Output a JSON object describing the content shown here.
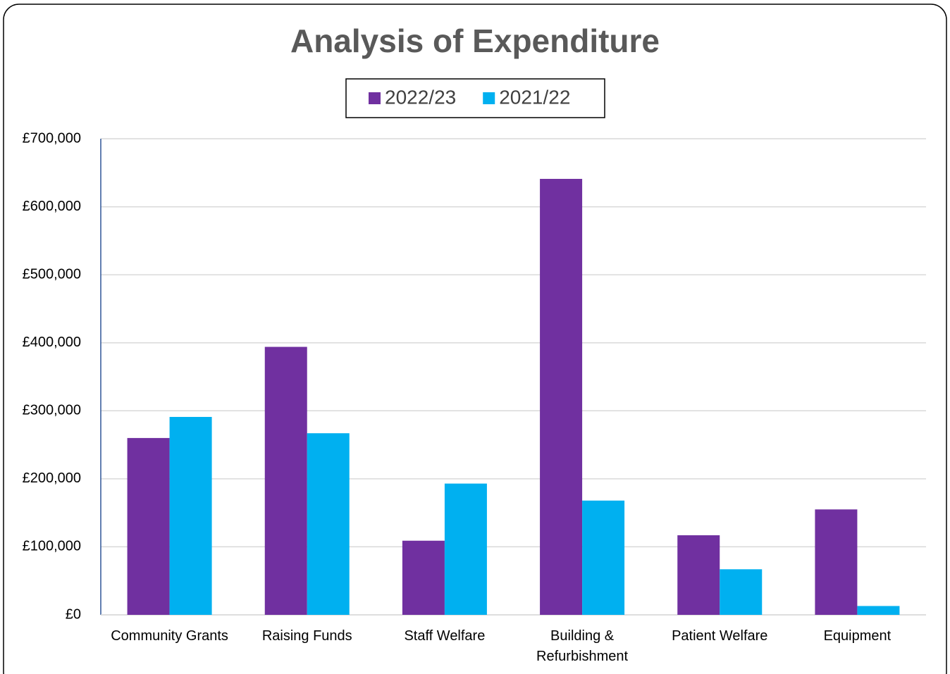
{
  "chart_data": {
    "type": "bar",
    "title": "Analysis of Expenditure",
    "categories": [
      "Community Grants",
      "Raising Funds",
      "Staff Welfare",
      "Building & Refurbishment",
      "Patient Welfare",
      "Equipment"
    ],
    "series": [
      {
        "name": "2022/23",
        "color": "#7030a0",
        "values": [
          260000,
          394000,
          109000,
          641000,
          117000,
          155000
        ]
      },
      {
        "name": "2021/22",
        "color": "#00b0f0",
        "values": [
          291000,
          267000,
          193000,
          168000,
          67000,
          13000
        ]
      }
    ],
    "ylim": [
      0,
      700000
    ],
    "yticks": [
      {
        "value": 0,
        "label": "£0"
      },
      {
        "value": 100000,
        "label": "£100,000"
      },
      {
        "value": 200000,
        "label": "£200,000"
      },
      {
        "value": 300000,
        "label": "£300,000"
      },
      {
        "value": 400000,
        "label": "£400,000"
      },
      {
        "value": 500000,
        "label": "£500,000"
      },
      {
        "value": 600000,
        "label": "£600,000"
      },
      {
        "value": 700000,
        "label": "£700,000"
      }
    ],
    "grid": true,
    "legend": "top"
  }
}
